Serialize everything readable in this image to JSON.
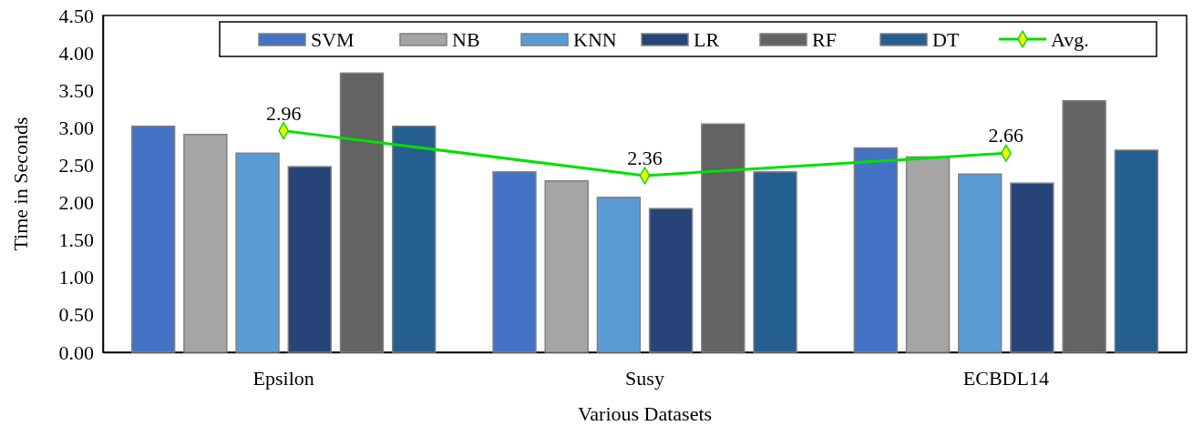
{
  "chart_data": {
    "type": "bar",
    "xlabel": "Various Datasets",
    "ylabel": "Time in Seconds",
    "categories": [
      "Epsilon",
      "Susy",
      "ECBDL14"
    ],
    "ylim": [
      0,
      4.5
    ],
    "yticks": [
      "0.00",
      "0.50",
      "1.00",
      "1.50",
      "2.00",
      "2.50",
      "3.00",
      "3.50",
      "4.00",
      "4.50"
    ],
    "legend": "top",
    "series": [
      {
        "name": "SVM",
        "color": "#4472c4",
        "values": [
          3.02,
          2.41,
          2.73
        ]
      },
      {
        "name": "NB",
        "color": "#a5a5a5",
        "values": [
          2.91,
          2.29,
          2.61
        ]
      },
      {
        "name": "KNN",
        "color": "#5b9bd5",
        "values": [
          2.66,
          2.07,
          2.38
        ]
      },
      {
        "name": "LR",
        "color": "#264478",
        "values": [
          2.48,
          1.92,
          2.26
        ]
      },
      {
        "name": "RF",
        "color": "#636363",
        "values": [
          3.73,
          3.05,
          3.36
        ]
      },
      {
        "name": "DT",
        "color": "#255e91",
        "values": [
          3.02,
          2.41,
          2.7
        ]
      },
      {
        "name": "Avg.",
        "type": "line",
        "color": "#00e000",
        "marker": "diamond",
        "values": [
          2.96,
          2.36,
          2.66
        ],
        "value_labels": [
          "2.96",
          "2.36",
          "2.66"
        ]
      }
    ]
  }
}
